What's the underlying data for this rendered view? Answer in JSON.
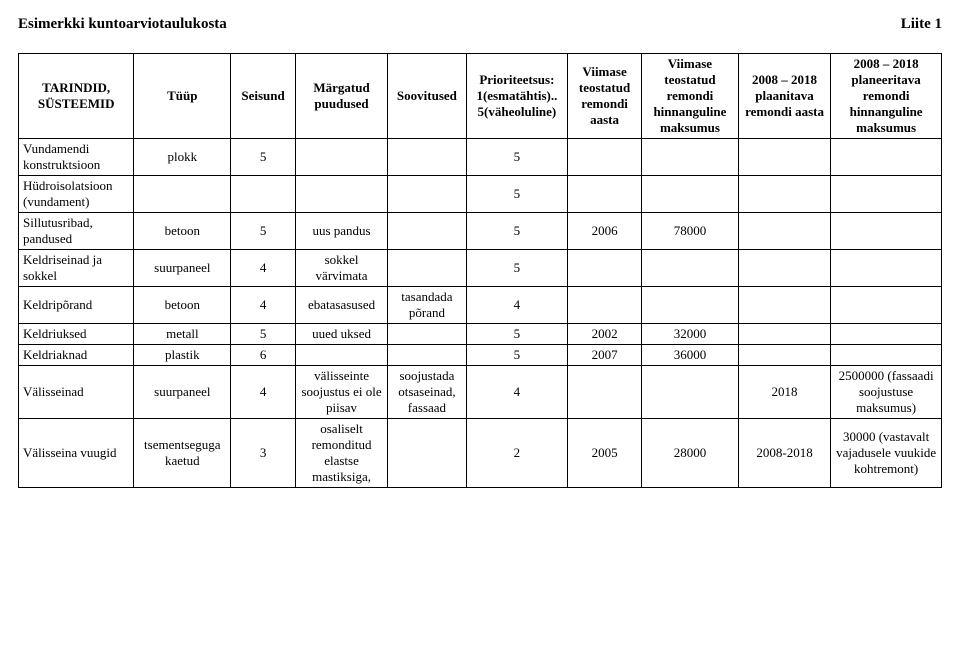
{
  "header": {
    "title": "Esimerkki kuntoarviotaulukosta",
    "appendix": "Liite 1"
  },
  "columns": [
    "TARINDID, SÜSTEEMID",
    "Tüüp",
    "Seisund",
    "Märgatud puudused",
    "Soovitused",
    "Prioriteetsus: 1(esmatähtis).. 5(väheoluline)",
    "Viimase teostatud remondi aasta",
    "Viimase teostatud remondi hinnanguline maksumus",
    "2008 – 2018 plaanitava remondi aasta",
    "2008 – 2018 planeeritava remondi hinnanguline maksumus"
  ],
  "rows": [
    {
      "c0": "Vundamendi konstruktsioon",
      "c1": "plokk",
      "c2": "5",
      "c3": "",
      "c4": "",
      "c5": "5",
      "c6": "",
      "c7": "",
      "c8": "",
      "c9": ""
    },
    {
      "c0": "Hüdroisolatsioon (vundament)",
      "c1": "",
      "c2": "",
      "c3": "",
      "c4": "",
      "c5": "5",
      "c6": "",
      "c7": "",
      "c8": "",
      "c9": ""
    },
    {
      "c0": "Sillutusribad, pandused",
      "c1": "betoon",
      "c2": "5",
      "c3": "uus pandus",
      "c4": "",
      "c5": "5",
      "c6": "2006",
      "c7": "78000",
      "c8": "",
      "c9": ""
    },
    {
      "c0": "Keldriseinad ja sokkel",
      "c1": "suurpaneel",
      "c2": "4",
      "c3": "sokkel värvimata",
      "c4": "",
      "c5": "5",
      "c6": "",
      "c7": "",
      "c8": "",
      "c9": ""
    },
    {
      "c0": "Keldripõrand",
      "c1": "betoon",
      "c2": "4",
      "c3": "ebatasasused",
      "c4": "tasandada põrand",
      "c5": "4",
      "c6": "",
      "c7": "",
      "c8": "",
      "c9": ""
    },
    {
      "c0": "Keldriuksed",
      "c1": "metall",
      "c2": "5",
      "c3": "uued uksed",
      "c4": "",
      "c5": "5",
      "c6": "2002",
      "c7": "32000",
      "c8": "",
      "c9": ""
    },
    {
      "c0": "Keldriaknad",
      "c1": "plastik",
      "c2": "6",
      "c3": "",
      "c4": "",
      "c5": "5",
      "c6": "2007",
      "c7": "36000",
      "c8": "",
      "c9": ""
    },
    {
      "c0": "Välisseinad",
      "c1": "suurpaneel",
      "c2": "4",
      "c3": "välisseinte soojustus ei ole piisav",
      "c4": "soojustada otsaseinad, fassaad",
      "c5": "4",
      "c6": "",
      "c7": "",
      "c8": "2018",
      "c9": "2500000 (fassaadi soojustuse maksumus)"
    },
    {
      "c0": "Välisseina vuugid",
      "c1": "tsementseguga kaetud",
      "c2": "3",
      "c3": "osaliselt remonditud elastse mastiksiga,",
      "c4": "",
      "c5": "2",
      "c6": "2005",
      "c7": "28000",
      "c8": "2008-2018",
      "c9": "30000 (vastavalt vajadusele vuukide kohtremont)"
    }
  ]
}
